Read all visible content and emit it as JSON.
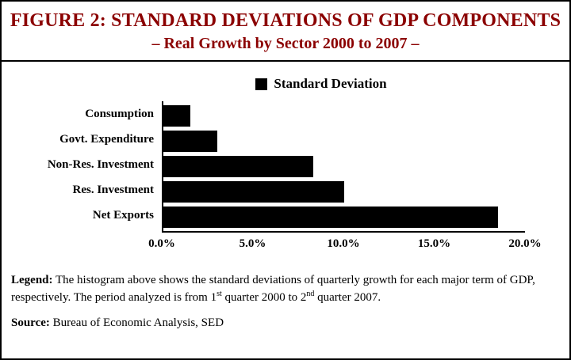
{
  "header": {
    "title": "FIGURE 2: STANDARD DEVIATIONS OF GDP COMPONENTS",
    "subtitle": "– Real Growth by Sector 2000 to 2007 –",
    "title_color": "#8B0000"
  },
  "chart_data": {
    "type": "bar",
    "orientation": "horizontal",
    "title": "FIGURE 2: STANDARD DEVIATIONS OF GDP COMPONENTS – Real Growth by Sector 2000 to 2007",
    "legend": "Standard Deviation",
    "legend_position": "top-center",
    "categories": [
      "Consumption",
      "Govt. Expenditure",
      "Non-Res. Investment",
      "Res. Investment",
      "Net Exports"
    ],
    "values": [
      1.5,
      3.0,
      8.3,
      10.0,
      18.5
    ],
    "unit": "%",
    "bar_color": "#000000",
    "xlim": [
      0,
      20
    ],
    "x_ticks": [
      "0.0%",
      "5.0%",
      "10.0%",
      "15.0%",
      "20.0%"
    ],
    "x_tick_values": [
      0,
      5,
      10,
      15,
      20
    ],
    "grid": false
  },
  "footer": {
    "legend_label": "Legend:",
    "legend_text_1": "The histogram above shows the standard deviations of quarterly growth for each major term of GDP, respectively. The period analyzed is from 1",
    "legend_sup_1": "st",
    "legend_text_2": " quarter 2000 to 2",
    "legend_sup_2": "nd",
    "legend_text_3": " quarter 2007.",
    "source_label": "Source:",
    "source_text": "Bureau of Economic Analysis, SED"
  }
}
